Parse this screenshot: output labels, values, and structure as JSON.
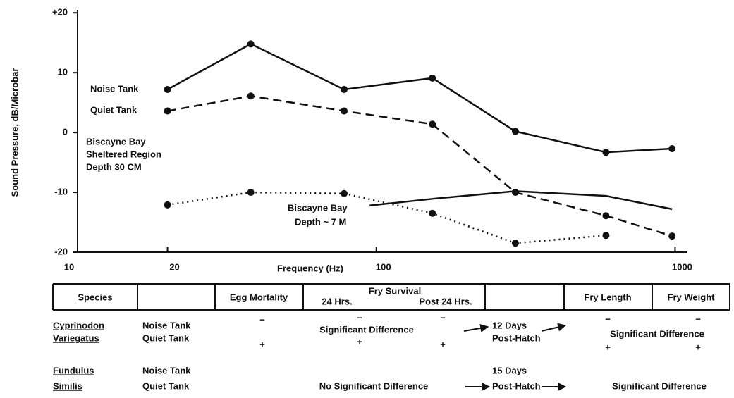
{
  "chart_data": {
    "type": "line",
    "ylabel": "Sound Pressure, dB/Microbar",
    "xlabel": "Frequency (Hz)",
    "xscale": "log",
    "xlim": [
      10,
      1100
    ],
    "xticks": [
      10,
      20,
      100,
      1000
    ],
    "ylim": [
      -20,
      20.5
    ],
    "yticks": [
      {
        "value": 20,
        "label": "+20"
      },
      10,
      0,
      -10,
      -20
    ],
    "annotations": [
      "Biscayne Bay",
      "Sheltered Region",
      "Depth 30 CM",
      "Biscayne Bay",
      "Depth ~ 7 M"
    ],
    "series": [
      {
        "name": "Noise Tank",
        "color": "#111",
        "style": "solid",
        "marker": true,
        "x": [
          20,
          38,
          78,
          154,
          292,
          587,
          977
        ],
        "values": [
          7.2,
          14.8,
          7.2,
          9.1,
          0.2,
          -3.3,
          -2.7
        ]
      },
      {
        "name": "Quiet Tank",
        "color": "#111",
        "style": "dashed",
        "marker": true,
        "x": [
          20,
          38,
          78,
          154,
          292,
          587,
          977
        ],
        "values": [
          3.6,
          6.1,
          3.6,
          1.4,
          -10,
          -13.9,
          -17.3
        ]
      },
      {
        "color": "#111",
        "style": "dotted",
        "marker": true,
        "x": [
          20,
          38,
          78,
          154,
          292,
          587
        ],
        "values": [
          -12.1,
          -10,
          -10.2,
          -13.5,
          -18.5,
          -17.2
        ]
      },
      {
        "color": "#111",
        "style": "solid",
        "marker": false,
        "x": [
          95,
          160,
          292,
          587,
          977
        ],
        "values": [
          -12.2,
          -11,
          -9.8,
          -10.6,
          -12.8
        ]
      }
    ]
  },
  "table": {
    "header": [
      "Species",
      "Egg Mortality",
      "Fry Survival",
      "24 Hrs.",
      "Post 24 Hrs.",
      "Fry Length",
      "Fry Weight"
    ],
    "rows": [
      [
        "Cyprinodon",
        "Variegatus",
        "Noise Tank",
        "Quiet Tank",
        "−",
        "+",
        "Significant  Difference",
        "−",
        "+",
        "−",
        "+",
        "12 Days",
        "Post-Hatch",
        "Significant Difference",
        "−",
        "+",
        "−",
        "+"
      ],
      [
        "Fundulus",
        "Similis",
        "Noise Tank",
        "Quiet Tank",
        "No  Significant  Difference",
        "15 Days",
        "Post-Hatch",
        "Significant Difference"
      ]
    ]
  }
}
